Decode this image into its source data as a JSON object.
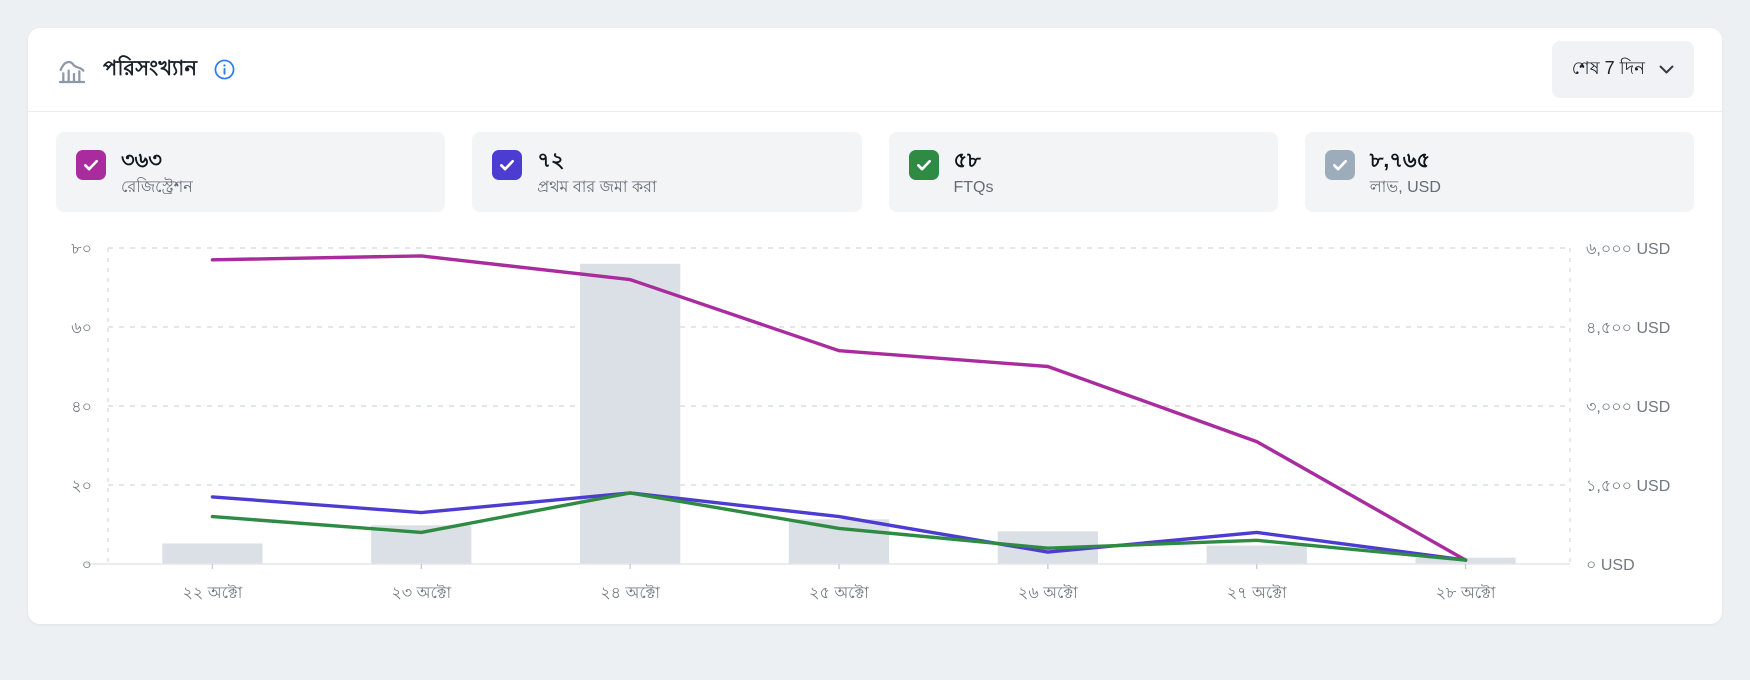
{
  "header": {
    "title": "পরিসংখ্যান",
    "range_selector": {
      "label": "শেষ 7 দিন"
    }
  },
  "stat_cards": [
    {
      "value": "৩৬৩",
      "label": "রেজিস্ট্রেশন",
      "color": "#a92c9e",
      "checked": true
    },
    {
      "value": "৭২",
      "label": "প্রথম বার জমা করা",
      "color": "#4c3cd1",
      "checked": true
    },
    {
      "value": "৫৮",
      "label": "FTQs",
      "color": "#2f8a44",
      "checked": true
    },
    {
      "value": "৮,৭৬৫",
      "label": "লাভ, USD",
      "color": "#9dacbb",
      "checked": true
    }
  ],
  "chart_data": {
    "type": "combo: bars + 3 lines",
    "categories": [
      "২২ অক্টো",
      "২৩ অক্টো",
      "২৪ অক্টো",
      "২৫ অক্টো",
      "২৬ অক্টো",
      "২৭ অক্টো",
      "২৮ অক্টো"
    ],
    "left_axis": {
      "tick_labels": [
        "০",
        "২০",
        "৪০",
        "৬০",
        "৮০"
      ],
      "tick_values": [
        0,
        20,
        40,
        60,
        80
      ],
      "max": 80
    },
    "right_axis": {
      "tick_labels": [
        "০ USD",
        "১,৫০০ USD",
        "৩,০০০ USD",
        "৪,৫০০ USD",
        "৬,০০০ USD"
      ],
      "tick_values": [
        0,
        1500,
        3000,
        4500,
        6000
      ],
      "max": 6000
    },
    "series": [
      {
        "id": "profit-bars",
        "name": "লাভ, USD",
        "type": "bar",
        "axis": "right",
        "color": "#dbe0e6",
        "values": [
          390,
          735,
          5700,
          850,
          620,
          350,
          120
        ]
      },
      {
        "id": "registrations-line",
        "name": "রেজিস্ট্রেশন",
        "type": "line",
        "axis": "left",
        "color": "#a92c9e",
        "values": [
          77,
          78,
          72,
          54,
          50,
          31,
          1
        ]
      },
      {
        "id": "first-deposits-line",
        "name": "প্রথম বার জমা করা",
        "type": "line",
        "axis": "left",
        "color": "#4c3cd1",
        "values": [
          17,
          13,
          18,
          12,
          3,
          8,
          1
        ]
      },
      {
        "id": "ftqs-line",
        "name": "FTQs",
        "type": "line",
        "axis": "left",
        "color": "#2f8a44",
        "values": [
          12,
          8,
          18,
          9,
          4,
          6,
          1
        ]
      }
    ],
    "grid": "dashed horizontal gridlines, dashed vertical plot-edge lines, solid baseline",
    "legend_position": "stat cards above chart act as legend toggles"
  }
}
